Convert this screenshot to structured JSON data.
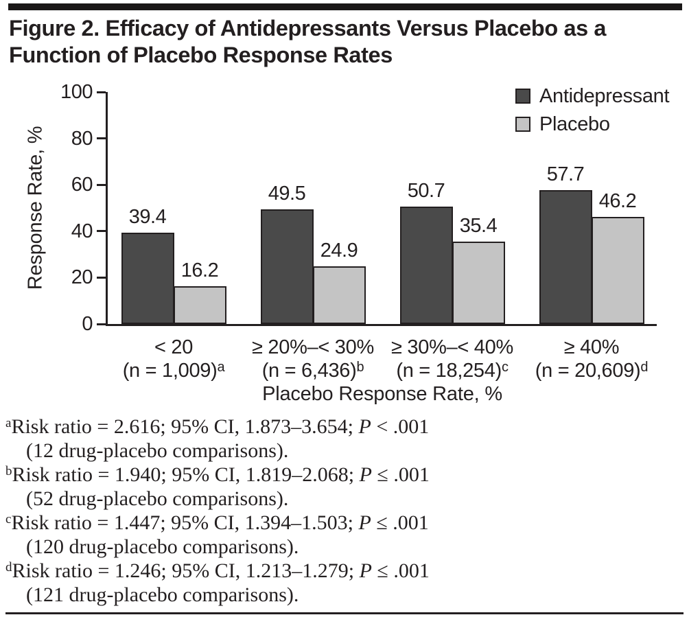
{
  "page": {
    "title_lines": [
      "Figure 2. Efficacy of Antidepressants Versus Placebo as a",
      "Function of Placebo Response Rates"
    ]
  },
  "colors": {
    "ink": "#231f20",
    "antidepressant_fill": "#4a4a4a",
    "placebo_fill": "#c4c4c4"
  },
  "chart_data": {
    "type": "bar",
    "title": "",
    "xlabel": "Placebo Response Rate, %",
    "ylabel": "Response Rate, %",
    "ylim": [
      0,
      100
    ],
    "yticks": [
      0,
      20,
      40,
      60,
      80,
      100
    ],
    "grid": false,
    "legend_position": "top-right",
    "categories": [
      {
        "label": "< 20",
        "n_label": "(n = 1,009)",
        "marker": "a"
      },
      {
        "label": "≥ 20%–< 30%",
        "n_label": "(n = 6,436)",
        "marker": "b"
      },
      {
        "label": "≥ 30%–< 40%",
        "n_label": "(n = 18,254)",
        "marker": "c"
      },
      {
        "label": "≥ 40%",
        "n_label": "(n = 20,609)",
        "marker": "d"
      }
    ],
    "series": [
      {
        "name": "Antidepressant",
        "color": "#4a4a4a",
        "values": [
          39.4,
          49.5,
          50.7,
          57.7
        ]
      },
      {
        "name": "Placebo",
        "color": "#c4c4c4",
        "values": [
          16.2,
          24.9,
          35.4,
          46.2
        ]
      }
    ]
  },
  "footnotes": [
    {
      "marker": "a",
      "stat": "Risk ratio = 2.616; 95% CI, 1.873–3.654; ",
      "p_symbol": "P",
      "p_rest": " < .001",
      "detail": "(12 drug-placebo comparisons)."
    },
    {
      "marker": "b",
      "stat": "Risk ratio = 1.940; 95% CI, 1.819–2.068; ",
      "p_symbol": "P",
      "p_rest": " ≤ .001",
      "detail": "(52 drug-placebo comparisons)."
    },
    {
      "marker": "c",
      "stat": "Risk ratio = 1.447; 95% CI, 1.394–1.503; ",
      "p_symbol": "P",
      "p_rest": " ≤ .001",
      "detail": "(120 drug-placebo comparisons)."
    },
    {
      "marker": "d",
      "stat": "Risk ratio = 1.246; 95% CI, 1.213–1.279; ",
      "p_symbol": "P",
      "p_rest": " ≤ .001",
      "detail": "(121 drug-placebo comparisons)."
    }
  ]
}
